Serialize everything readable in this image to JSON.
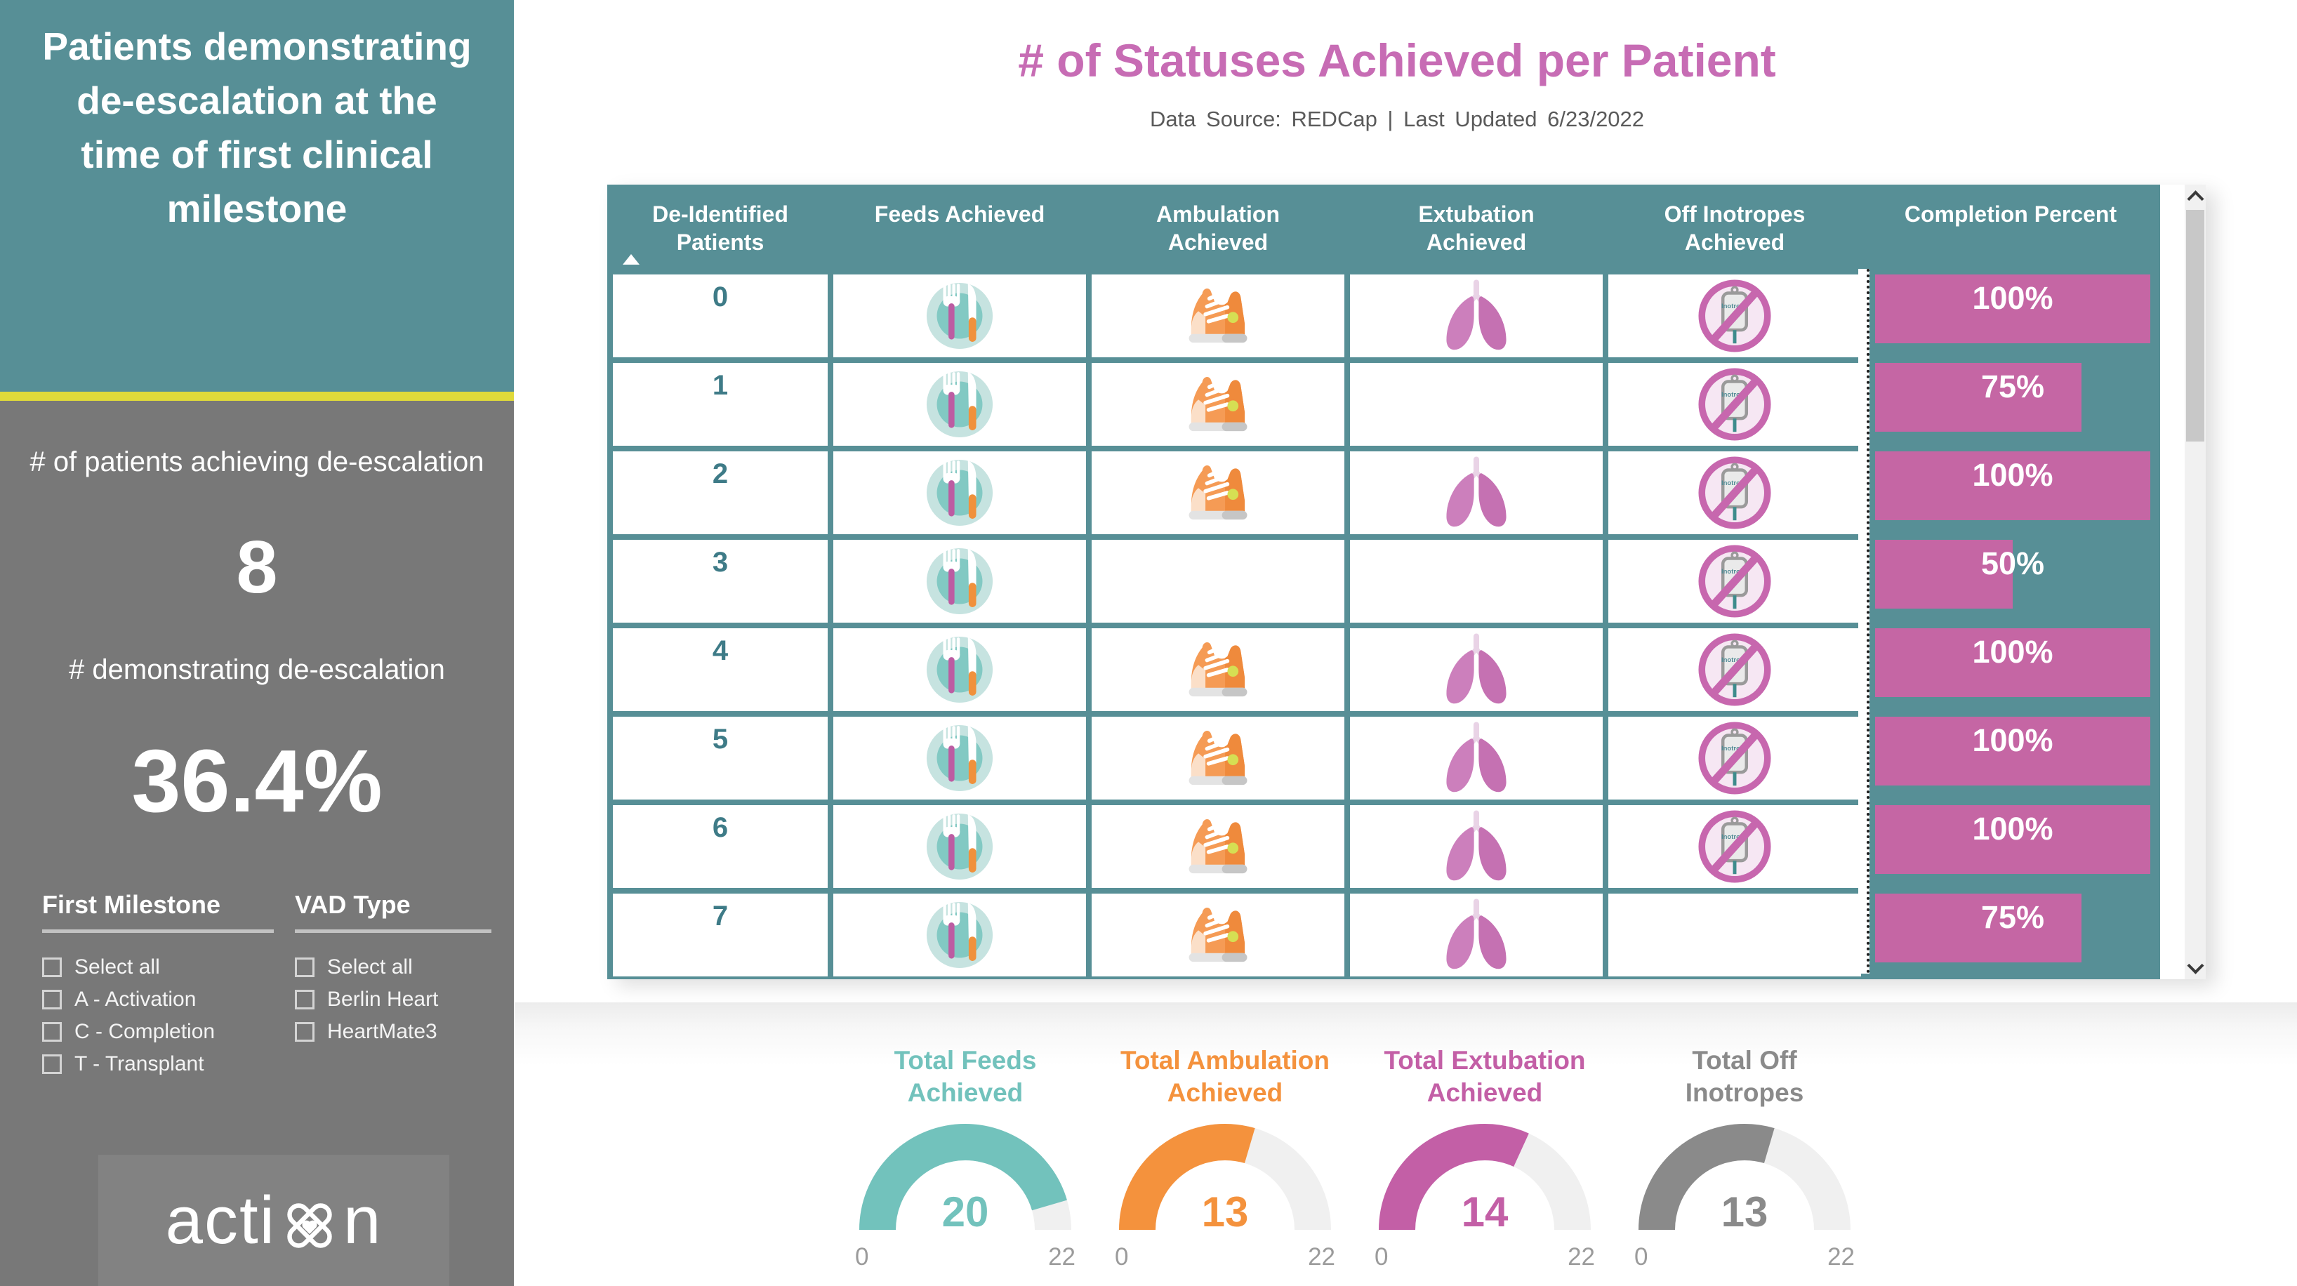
{
  "sidebar": {
    "title": "Patients demonstrating de-escalation at the time of first clinical milestone",
    "stat1_label": "# of patients achieving de-escalation",
    "stat1_value": "8",
    "stat2_label": "# demonstrating de-escalation",
    "stat2_value": "36.4%",
    "filters": [
      {
        "title": "First Milestone",
        "options": [
          "Select all",
          "A - Activation",
          "C - Completion",
          "T - Transplant"
        ]
      },
      {
        "title": "VAD Type",
        "options": [
          "Select all",
          "Berlin Heart",
          "HeartMate3"
        ]
      }
    ],
    "logo_left": "acti",
    "logo_right": "n"
  },
  "header": {
    "title": "# of Statuses Achieved per Patient",
    "subtitle": "Data Source: REDCap  |  Last Updated 6/23/2022"
  },
  "table": {
    "columns": [
      {
        "line1": "De-Identified",
        "line2": "Patients"
      },
      {
        "line1": "Feeds Achieved",
        "line2": ""
      },
      {
        "line1": "Ambulation",
        "line2": "Achieved"
      },
      {
        "line1": "Extubation",
        "line2": "Achieved"
      },
      {
        "line1": "Off Inotropes",
        "line2": "Achieved"
      },
      {
        "line1": "Completion Percent",
        "line2": ""
      }
    ],
    "rows": [
      {
        "patient": "0",
        "feeds": true,
        "ambulation": true,
        "extubation": true,
        "off_inotropes": true,
        "completion": 100,
        "completion_label": "100%"
      },
      {
        "patient": "1",
        "feeds": true,
        "ambulation": true,
        "extubation": false,
        "off_inotropes": true,
        "completion": 75,
        "completion_label": "75%"
      },
      {
        "patient": "2",
        "feeds": true,
        "ambulation": true,
        "extubation": true,
        "off_inotropes": true,
        "completion": 100,
        "completion_label": "100%"
      },
      {
        "patient": "3",
        "feeds": true,
        "ambulation": false,
        "extubation": false,
        "off_inotropes": true,
        "completion": 50,
        "completion_label": "50%"
      },
      {
        "patient": "4",
        "feeds": true,
        "ambulation": true,
        "extubation": true,
        "off_inotropes": true,
        "completion": 100,
        "completion_label": "100%"
      },
      {
        "patient": "5",
        "feeds": true,
        "ambulation": true,
        "extubation": true,
        "off_inotropes": true,
        "completion": 100,
        "completion_label": "100%"
      },
      {
        "patient": "6",
        "feeds": true,
        "ambulation": true,
        "extubation": true,
        "off_inotropes": true,
        "completion": 100,
        "completion_label": "100%"
      },
      {
        "patient": "7",
        "feeds": true,
        "ambulation": true,
        "extubation": true,
        "off_inotropes": false,
        "completion": 75,
        "completion_label": "75%"
      }
    ]
  },
  "chart_data": [
    {
      "type": "bar",
      "title": "Completion Percent",
      "categories": [
        "0",
        "1",
        "2",
        "3",
        "4",
        "5",
        "6",
        "7"
      ],
      "values": [
        100,
        75,
        100,
        50,
        100,
        100,
        100,
        75
      ],
      "xlim": [
        0,
        100
      ],
      "orientation": "horizontal"
    },
    {
      "type": "gauge",
      "title": "Total Feeds Achieved",
      "value": 20,
      "min": 0,
      "max": 22
    },
    {
      "type": "gauge",
      "title": "Total Ambulation Achieved",
      "value": 13,
      "min": 0,
      "max": 22
    },
    {
      "type": "gauge",
      "title": "Total Extubation Achieved",
      "value": 14,
      "min": 0,
      "max": 22
    },
    {
      "type": "gauge",
      "title": "Total Off Inotropes",
      "value": 13,
      "min": 0,
      "max": 22
    }
  ],
  "gauges": [
    {
      "line1": "Total Feeds",
      "line2": "Achieved",
      "value": 20,
      "min": "0",
      "max": "22",
      "color": "#72C2BC"
    },
    {
      "line1": "Total Ambulation",
      "line2": "Achieved",
      "value": 13,
      "min": "0",
      "max": "22",
      "color": "#F4923D"
    },
    {
      "line1": "Total Extubation",
      "line2": "Achieved",
      "value": 14,
      "min": "0",
      "max": "22",
      "color": "#C35FA6"
    },
    {
      "line1": "Total Off",
      "line2": "Inotropes",
      "value": 13,
      "min": "0",
      "max": "22",
      "color": "#8A8A8A"
    }
  ],
  "colors": {
    "teal": "#578F96",
    "pink_title": "#C76CB4",
    "pink_bar": "#C566A4",
    "sidebar_gray": "#787878",
    "yellow_divider": "#E0DA3A",
    "gauge_track": "#F0F0F0"
  }
}
